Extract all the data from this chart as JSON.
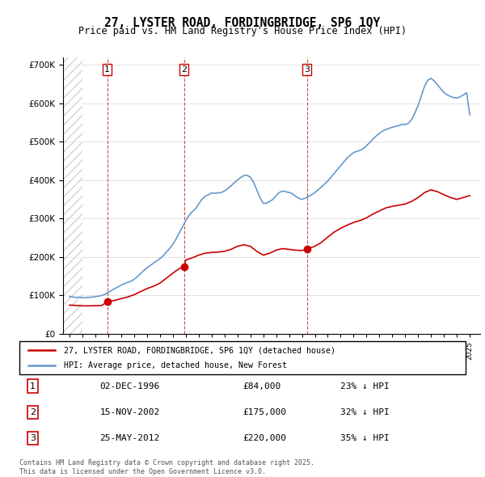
{
  "title1": "27, LYSTER ROAD, FORDINGBRIDGE, SP6 1QY",
  "title2": "Price paid vs. HM Land Registry's House Price Index (HPI)",
  "legend_line1": "27, LYSTER ROAD, FORDINGBRIDGE, SP6 1QY (detached house)",
  "legend_line2": "HPI: Average price, detached house, New Forest",
  "transactions": [
    {
      "num": 1,
      "date": "02-DEC-1996",
      "price": 84000,
      "pct": "23%",
      "year": 1996.92
    },
    {
      "num": 2,
      "date": "15-NOV-2002",
      "price": 175000,
      "pct": "32%",
      "year": 2002.87
    },
    {
      "num": 3,
      "date": "25-MAY-2012",
      "price": 220000,
      "pct": "35%",
      "year": 2012.38
    }
  ],
  "footer1": "Contains HM Land Registry data © Crown copyright and database right 2025.",
  "footer2": "This data is licensed under the Open Government Licence v3.0.",
  "red_color": "#cc0000",
  "blue_color": "#6699cc",
  "hatch_color": "#cccccc",
  "ylim": [
    0,
    720000
  ],
  "xlim_start": 1993.5,
  "xlim_end": 2025.8,
  "hpi_data": {
    "years": [
      1994.0,
      1994.25,
      1994.5,
      1994.75,
      1995.0,
      1995.25,
      1995.5,
      1995.75,
      1996.0,
      1996.25,
      1996.5,
      1996.75,
      1997.0,
      1997.25,
      1997.5,
      1997.75,
      1998.0,
      1998.25,
      1998.5,
      1998.75,
      1999.0,
      1999.25,
      1999.5,
      1999.75,
      2000.0,
      2000.25,
      2000.5,
      2000.75,
      2001.0,
      2001.25,
      2001.5,
      2001.75,
      2002.0,
      2002.25,
      2002.5,
      2002.75,
      2003.0,
      2003.25,
      2003.5,
      2003.75,
      2004.0,
      2004.25,
      2004.5,
      2004.75,
      2005.0,
      2005.25,
      2005.5,
      2005.75,
      2006.0,
      2006.25,
      2006.5,
      2006.75,
      2007.0,
      2007.25,
      2007.5,
      2007.75,
      2008.0,
      2008.25,
      2008.5,
      2008.75,
      2009.0,
      2009.25,
      2009.5,
      2009.75,
      2010.0,
      2010.25,
      2010.5,
      2010.75,
      2011.0,
      2011.25,
      2011.5,
      2011.75,
      2012.0,
      2012.25,
      2012.5,
      2012.75,
      2013.0,
      2013.25,
      2013.5,
      2013.75,
      2014.0,
      2014.25,
      2014.5,
      2014.75,
      2015.0,
      2015.25,
      2015.5,
      2015.75,
      2016.0,
      2016.25,
      2016.5,
      2016.75,
      2017.0,
      2017.25,
      2017.5,
      2017.75,
      2018.0,
      2018.25,
      2018.5,
      2018.75,
      2019.0,
      2019.25,
      2019.5,
      2019.75,
      2020.0,
      2020.25,
      2020.5,
      2020.75,
      2021.0,
      2021.25,
      2021.5,
      2021.75,
      2022.0,
      2022.25,
      2022.5,
      2022.75,
      2023.0,
      2023.25,
      2023.5,
      2023.75,
      2024.0,
      2024.25,
      2024.5,
      2024.75,
      2025.0
    ],
    "values": [
      97000,
      96000,
      95000,
      95500,
      94000,
      94500,
      95000,
      96000,
      97000,
      98000,
      100000,
      103000,
      108000,
      113000,
      118000,
      122000,
      127000,
      131000,
      134000,
      137000,
      142000,
      149000,
      157000,
      165000,
      172000,
      178000,
      184000,
      190000,
      196000,
      203000,
      213000,
      222000,
      233000,
      247000,
      263000,
      278000,
      295000,
      308000,
      318000,
      325000,
      338000,
      350000,
      358000,
      362000,
      367000,
      366000,
      367000,
      368000,
      372000,
      378000,
      385000,
      393000,
      400000,
      407000,
      412000,
      413000,
      408000,
      395000,
      375000,
      355000,
      340000,
      340000,
      345000,
      350000,
      360000,
      368000,
      372000,
      370000,
      368000,
      365000,
      358000,
      353000,
      350000,
      353000,
      358000,
      362000,
      368000,
      375000,
      382000,
      390000,
      398000,
      408000,
      418000,
      428000,
      438000,
      448000,
      458000,
      465000,
      472000,
      475000,
      478000,
      482000,
      490000,
      498000,
      507000,
      515000,
      522000,
      528000,
      532000,
      535000,
      538000,
      540000,
      542000,
      545000,
      545000,
      548000,
      558000,
      575000,
      595000,
      620000,
      645000,
      660000,
      665000,
      658000,
      648000,
      638000,
      628000,
      622000,
      618000,
      615000,
      614000,
      617000,
      622000,
      628000,
      570000
    ]
  },
  "price_data": {
    "years": [
      1994.0,
      1994.5,
      1995.0,
      1995.5,
      1996.0,
      1996.5,
      1996.92,
      1997.0,
      1997.5,
      1998.0,
      1998.5,
      1999.0,
      1999.5,
      2000.0,
      2000.5,
      2001.0,
      2001.5,
      2002.0,
      2002.5,
      2002.87,
      2003.0,
      2003.5,
      2004.0,
      2004.5,
      2005.0,
      2005.5,
      2006.0,
      2006.5,
      2007.0,
      2007.5,
      2008.0,
      2008.5,
      2009.0,
      2009.5,
      2010.0,
      2010.5,
      2011.0,
      2011.5,
      2012.0,
      2012.38,
      2012.5,
      2013.0,
      2013.5,
      2014.0,
      2014.5,
      2015.0,
      2015.5,
      2016.0,
      2016.5,
      2017.0,
      2017.5,
      2018.0,
      2018.5,
      2019.0,
      2019.5,
      2020.0,
      2020.5,
      2021.0,
      2021.5,
      2022.0,
      2022.5,
      2023.0,
      2023.5,
      2024.0,
      2024.5,
      2025.0
    ],
    "values": [
      75000,
      74000,
      73000,
      73000,
      73500,
      74000,
      84000,
      85000,
      87000,
      92000,
      96000,
      102000,
      110000,
      118000,
      124000,
      132000,
      145000,
      158000,
      170000,
      175000,
      192000,
      198000,
      205000,
      210000,
      212000,
      213000,
      215000,
      220000,
      228000,
      232000,
      228000,
      215000,
      205000,
      210000,
      218000,
      222000,
      220000,
      218000,
      217000,
      220000,
      222000,
      228000,
      238000,
      252000,
      265000,
      275000,
      283000,
      290000,
      295000,
      302000,
      312000,
      320000,
      328000,
      332000,
      335000,
      338000,
      345000,
      355000,
      368000,
      375000,
      370000,
      362000,
      355000,
      350000,
      355000,
      360000
    ]
  }
}
